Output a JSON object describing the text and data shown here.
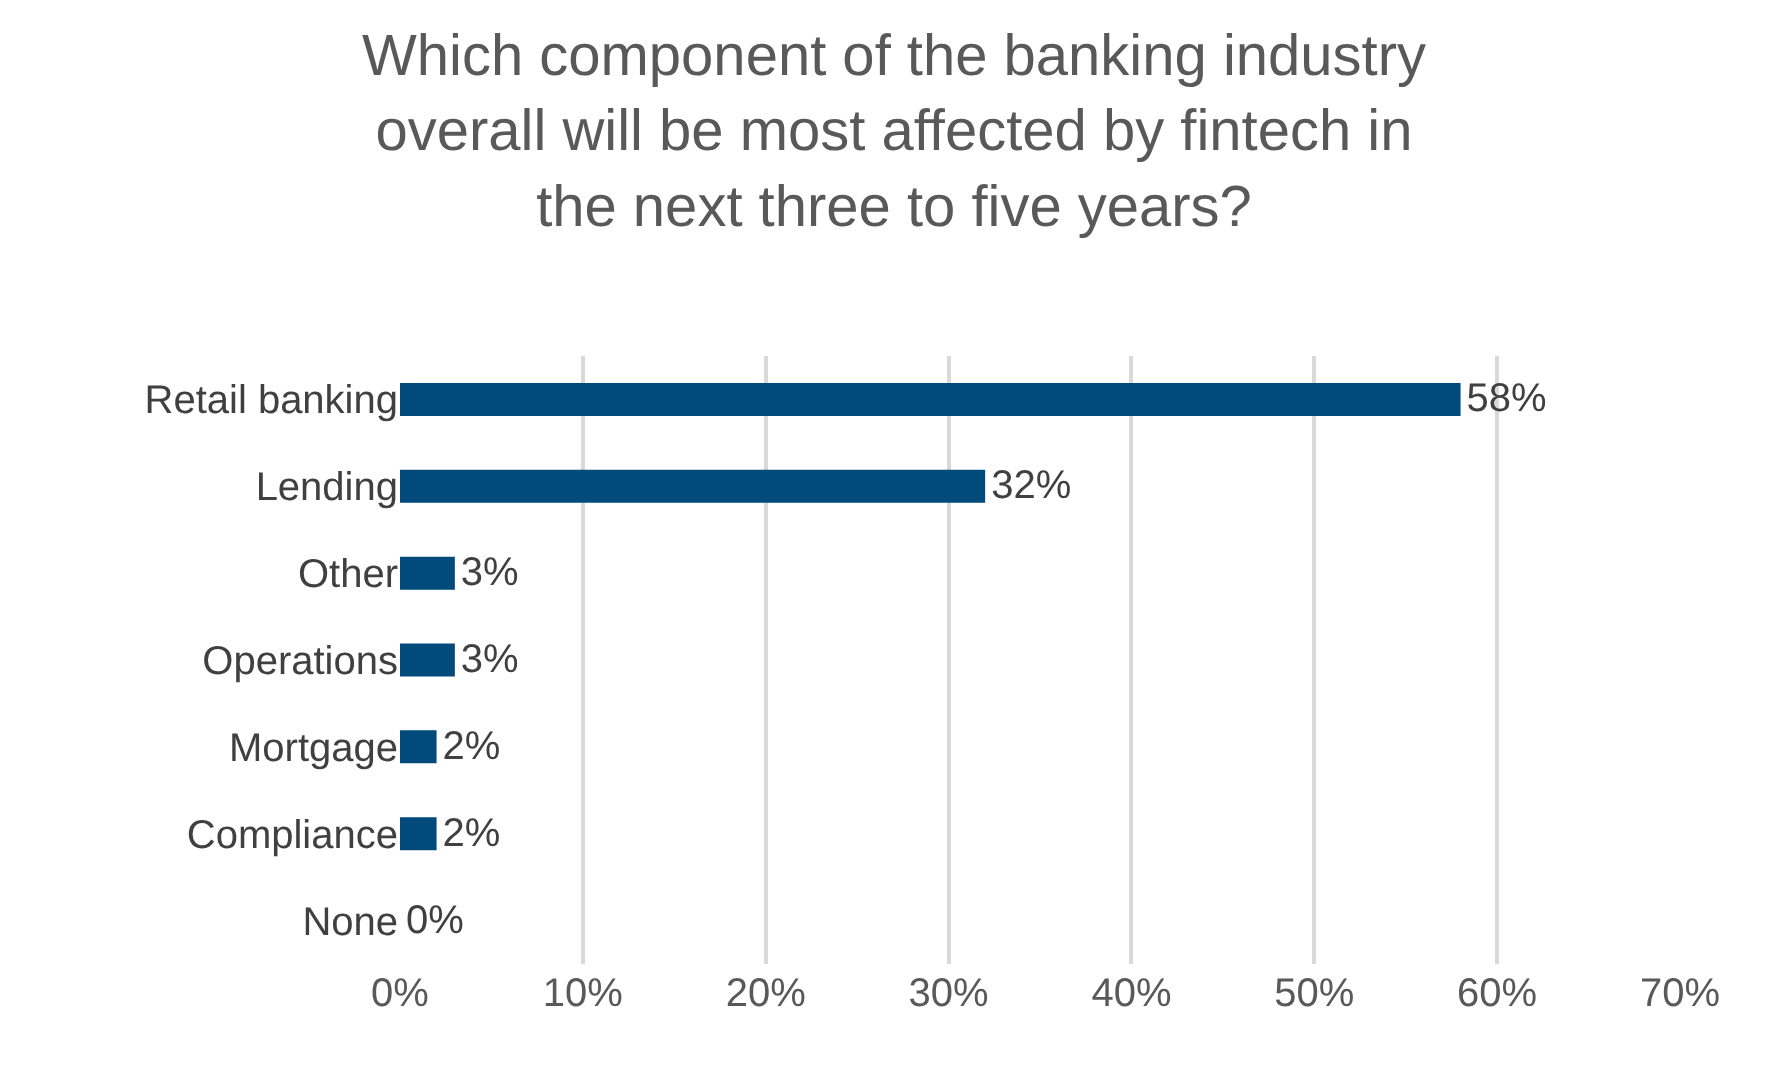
{
  "chart_data": {
    "type": "bar",
    "orientation": "horizontal",
    "title": "Which component of the banking industry overall will be most affected by fintech in the next three to five years?",
    "categories": [
      "Retail banking",
      "Lending",
      "Other",
      "Operations",
      "Mortgage",
      "Compliance",
      "None"
    ],
    "values": [
      58,
      32,
      3,
      3,
      2,
      2,
      0
    ],
    "value_labels": [
      "58%",
      "32%",
      "3%",
      "3%",
      "2%",
      "2%",
      "0%"
    ],
    "color": "#004b7c",
    "xlim": [
      0,
      70
    ],
    "xticks": [
      {
        "value": 0,
        "label": "0%"
      },
      {
        "value": 10,
        "label": "10%"
      },
      {
        "value": 20,
        "label": "20%"
      },
      {
        "value": 30,
        "label": "30%"
      },
      {
        "value": 40,
        "label": "40%"
      },
      {
        "value": 50,
        "label": "50%"
      },
      {
        "value": 60,
        "label": "60%"
      },
      {
        "value": 70,
        "label": "70%"
      }
    ],
    "grid": "x",
    "legend": false
  }
}
